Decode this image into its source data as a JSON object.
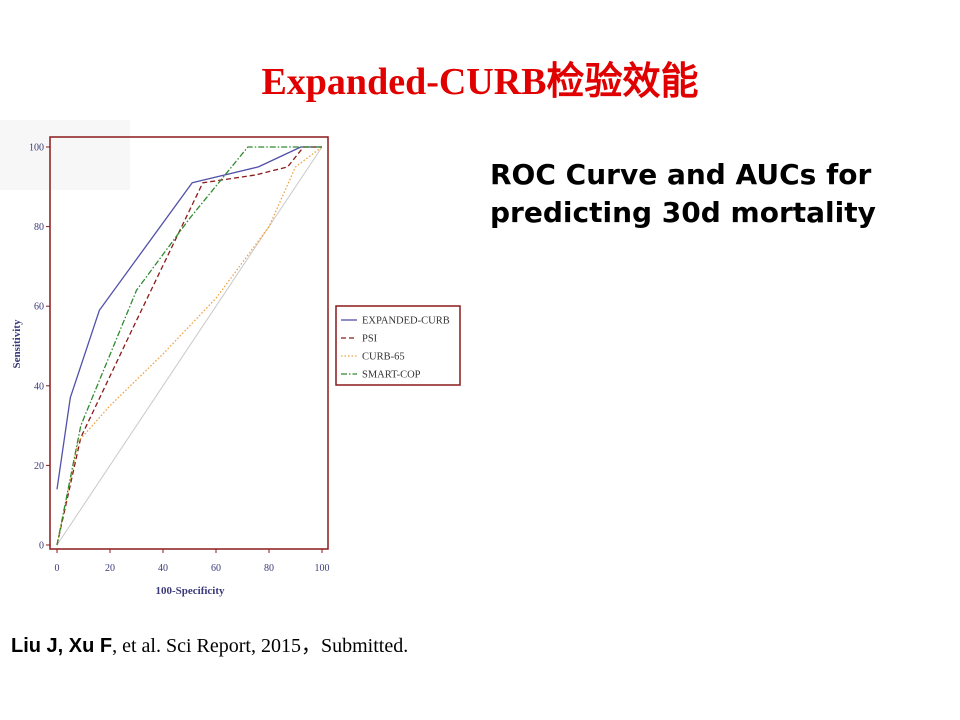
{
  "slide": {
    "title": "Expanded-CURB检验效能",
    "heading_line1": "ROC Curve and AUCs for",
    "heading_line2": "predicting 30d mortality",
    "citation_authors": "Liu J, Xu F",
    "citation_rest": ", et al. Sci Report, 2015，Submitted."
  },
  "chart_data": {
    "type": "line",
    "title": "",
    "xlabel": "100-Specificity",
    "ylabel": "Sensitivity",
    "xlim": [
      0,
      100
    ],
    "ylim": [
      0,
      100
    ],
    "xticks": [
      0,
      20,
      40,
      60,
      80,
      100
    ],
    "yticks": [
      0,
      20,
      40,
      60,
      80,
      100
    ],
    "grid": false,
    "legend_position": "right",
    "reference_line": {
      "x": [
        0,
        100
      ],
      "y": [
        0,
        100
      ],
      "color": "#c8c8c8"
    },
    "series": [
      {
        "name": "EXPANDED-CURB",
        "color": "#5050a8",
        "dash": "solid",
        "x": [
          0,
          5,
          16,
          51,
          76,
          92,
          100
        ],
        "y": [
          14,
          37,
          59,
          91,
          95,
          100,
          100
        ]
      },
      {
        "name": "PSI",
        "color": "#8b1a1a",
        "dash": "dashed",
        "x": [
          0,
          9,
          29,
          55,
          75,
          87,
          93,
          100
        ],
        "y": [
          0,
          27,
          55,
          91,
          93,
          95,
          100,
          100
        ]
      },
      {
        "name": "CURB-65",
        "color": "#f0a040",
        "dash": "dotted",
        "x": [
          0,
          8,
          20,
          40,
          60,
          80,
          90,
          100
        ],
        "y": [
          0,
          26,
          35,
          48,
          62,
          80,
          95,
          100
        ]
      },
      {
        "name": "SMART-COP",
        "color": "#2e8b2e",
        "dash": "dashdot",
        "x": [
          0,
          9,
          30,
          50,
          72,
          100
        ],
        "y": [
          0,
          30,
          64,
          82,
          100,
          100
        ]
      }
    ]
  }
}
